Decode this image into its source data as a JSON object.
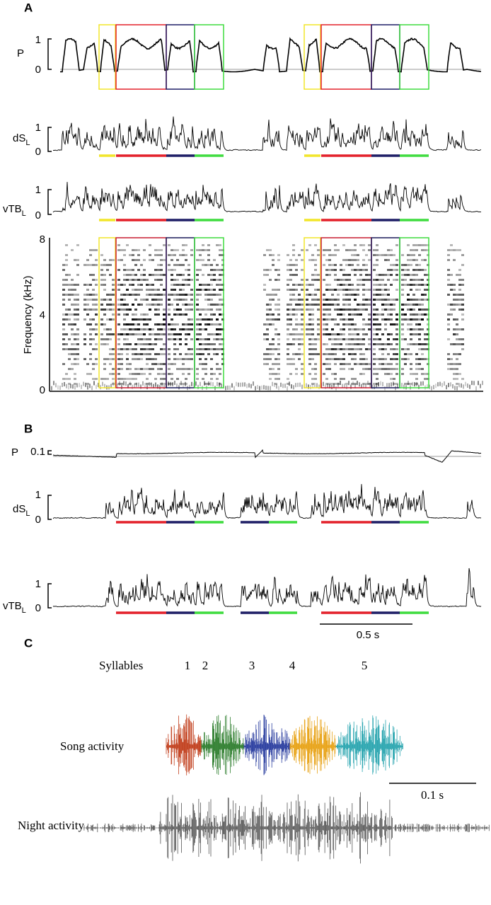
{
  "panels": [
    {
      "label": "A",
      "traces": [
        {
          "name": "P",
          "tick_top": "1",
          "tick_bottom": "0"
        },
        {
          "name": "dS",
          "subscript": "L",
          "tick_top": "1",
          "tick_bottom": "0"
        },
        {
          "name": "vTB",
          "subscript": "L",
          "tick_top": "1",
          "tick_bottom": "0"
        }
      ],
      "spectrogram": {
        "axis_label": "Frequency (kHz)",
        "ticks": [
          "8",
          "4",
          "0"
        ]
      }
    },
    {
      "label": "B",
      "traces": [
        {
          "name": "P",
          "tick": "0.1"
        },
        {
          "name": "dS",
          "subscript": "L",
          "tick_top": "1",
          "tick_bottom": "0"
        },
        {
          "name": "vTB",
          "subscript": "L",
          "tick_top": "1",
          "tick_bottom": "0"
        }
      ],
      "scale_bar": "0.5 s"
    },
    {
      "label": "C",
      "syllables_label": "Syllables",
      "syllables": [
        "1",
        "2",
        "3",
        "4",
        "5"
      ],
      "rows": [
        "Song activity",
        "Night activity"
      ],
      "scale_bar": "0.1 s"
    }
  ]
}
